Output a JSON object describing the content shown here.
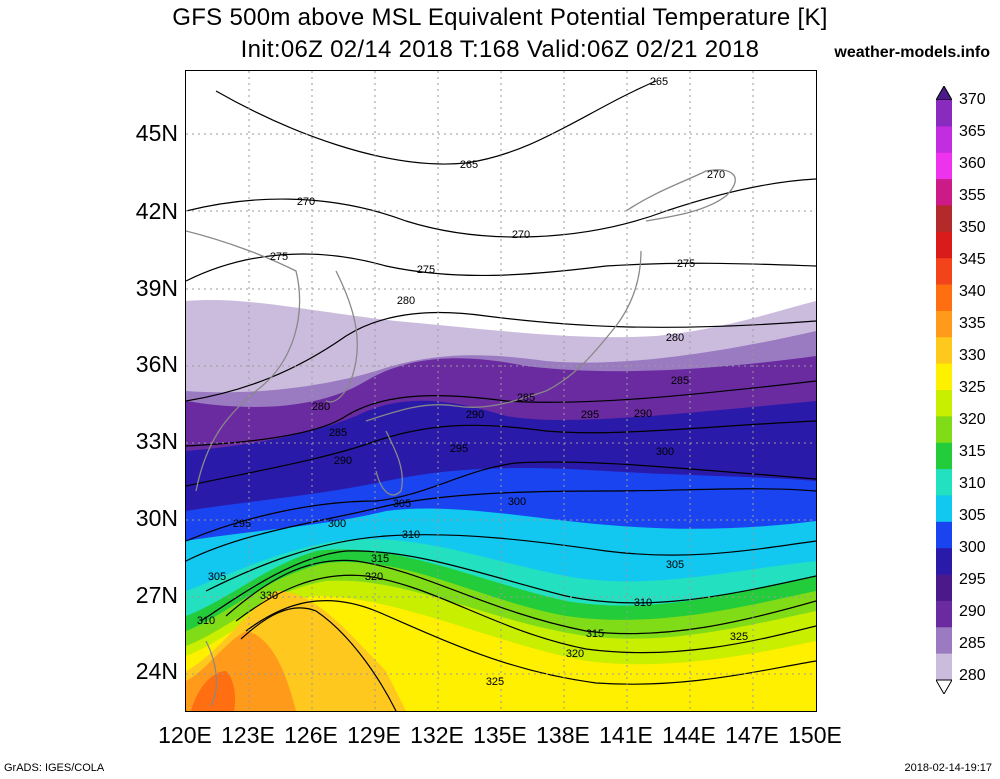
{
  "title": {
    "line1": "GFS 500m above MSL Equivalent Potential Temperature [K]",
    "line2": "Init:06Z 02/14 2018 T:168 Valid:06Z 02/21 2018"
  },
  "brand": "weather-models.info",
  "footer": {
    "left": "GrADS: IGES/COLA",
    "right": "2018-02-14-19:17"
  },
  "axes": {
    "lat_labels": [
      "45N",
      "42N",
      "39N",
      "36N",
      "33N",
      "30N",
      "27N",
      "24N"
    ],
    "lon_labels": [
      "120E",
      "123E",
      "126E",
      "129E",
      "132E",
      "135E",
      "138E",
      "141E",
      "144E",
      "147E",
      "150E"
    ]
  },
  "colorbar": {
    "labels": [
      "370",
      "365",
      "360",
      "355",
      "350",
      "345",
      "340",
      "335",
      "330",
      "325",
      "320",
      "315",
      "310",
      "305",
      "300",
      "295",
      "290",
      "285",
      "280"
    ],
    "colors": [
      "#8a2bbf",
      "#c02ee0",
      "#ee33ee",
      "#cc1a88",
      "#b22a2a",
      "#d81c1c",
      "#f2431a",
      "#ff6e10",
      "#ff9a1a",
      "#ffc81e",
      "#fff000",
      "#c8ee00",
      "#7fdc16",
      "#22cc3a",
      "#22e0c0",
      "#12c8f0",
      "#1a44f0",
      "#2a1aaa",
      "#4a1a8a",
      "#6a2aa0",
      "#9a7ac0",
      "#cbbcde"
    ]
  },
  "contour_labels": [
    "265",
    "265",
    "270",
    "270",
    "270",
    "275",
    "275",
    "275",
    "280",
    "280",
    "280",
    "285",
    "285",
    "285",
    "290",
    "290",
    "290",
    "295",
    "295",
    "295",
    "300",
    "300",
    "300",
    "305",
    "305",
    "305",
    "310",
    "310",
    "310",
    "315",
    "315",
    "320",
    "320",
    "325",
    "325",
    "330"
  ]
}
